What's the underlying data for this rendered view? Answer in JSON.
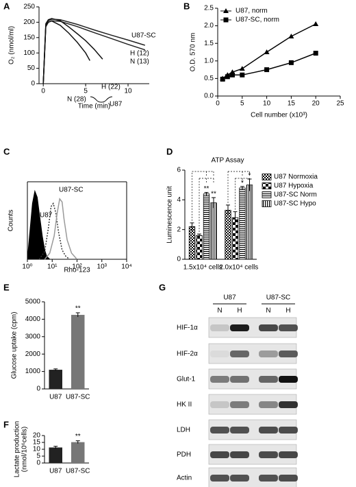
{
  "chart_data": [
    {
      "type": "line",
      "label": "A",
      "y_label": "O₂ (nmol/ml)",
      "x_label": "Time (min)",
      "xlim": [
        -0.5,
        12.5
      ],
      "xticks": [
        0,
        5,
        10
      ],
      "ylim": [
        0,
        250
      ],
      "yticks": [
        0,
        50,
        100,
        150,
        200,
        250
      ],
      "annotations": [
        "U87-SC",
        "U87"
      ],
      "series": [
        {
          "name": "H (12)",
          "color": "#222222",
          "x": [
            0,
            0.3,
            0.6,
            1,
            2,
            4,
            6,
            8,
            10,
            12
          ],
          "values": [
            0,
            190,
            205,
            210,
            208,
            193,
            175,
            158,
            142,
            125
          ]
        },
        {
          "name": "N (13)",
          "color": "#222222",
          "x": [
            0,
            0.3,
            0.6,
            1,
            2,
            4,
            6,
            8,
            10,
            12
          ],
          "values": [
            0,
            185,
            200,
            205,
            203,
            186,
            166,
            147,
            128,
            110
          ]
        },
        {
          "name": "H (22)",
          "color": "#111111",
          "x": [
            0,
            0.3,
            0.6,
            1,
            2,
            3,
            4,
            5,
            6,
            7
          ],
          "values": [
            0,
            195,
            208,
            212,
            205,
            185,
            163,
            140,
            112,
            80
          ]
        },
        {
          "name": "N (28)",
          "color": "#111111",
          "x": [
            0,
            0.3,
            0.6,
            1,
            2,
            3,
            4,
            5,
            5.5
          ],
          "values": [
            0,
            190,
            200,
            204,
            190,
            165,
            135,
            100,
            75
          ]
        }
      ]
    },
    {
      "type": "line",
      "label": "B",
      "x_label": "Cell number (x10³)",
      "y_label": "O.D. 570 nm",
      "x": [
        1,
        2,
        3,
        5,
        10,
        15,
        20
      ],
      "xlim": [
        0,
        25
      ],
      "xticks": [
        0,
        5,
        10,
        15,
        20,
        25
      ],
      "ylim": [
        0,
        2.5
      ],
      "yticks": [
        {
          "value": 0,
          "label": "0.0"
        },
        0.5,
        {
          "value": 1,
          "label": "1.0"
        },
        1.5,
        {
          "value": 2,
          "label": "2.0"
        },
        2.5
      ],
      "legend": "upper-left",
      "series": [
        {
          "name": "U87, norm",
          "color": "#000000",
          "marker": "triangle",
          "values": [
            0.5,
            0.6,
            0.68,
            0.78,
            1.25,
            1.7,
            2.05
          ]
        },
        {
          "name": "U87-SC, norm",
          "color": "#000000",
          "marker": "square",
          "values": [
            0.48,
            0.55,
            0.6,
            0.6,
            0.75,
            0.95,
            1.22
          ]
        }
      ]
    },
    {
      "type": "line",
      "label": "C",
      "y_label": "Counts",
      "x_label": "Rho-123",
      "box": true,
      "xscale": "log",
      "xlim": [
        1,
        10000
      ],
      "xticks": [
        {
          "value": 1,
          "label": "10⁰"
        },
        {
          "value": 10,
          "label": "10¹"
        },
        {
          "value": 100,
          "label": "10²"
        },
        {
          "value": 1000,
          "label": "10³"
        },
        {
          "value": 10000,
          "label": "10⁴"
        }
      ],
      "ylim": [
        0,
        100
      ],
      "series": [
        {
          "color": "#000000",
          "fill": true,
          "x": [
            1,
            1.3,
            1.6,
            2,
            2.5,
            3,
            4,
            5,
            6,
            8
          ],
          "values": [
            0,
            40,
            72,
            88,
            80,
            60,
            30,
            12,
            4,
            0
          ]
        },
        {
          "name": "U87",
          "color": "#333333",
          "dash": true,
          "x": [
            3,
            5,
            7,
            9,
            11,
            14,
            18,
            25,
            35,
            50
          ],
          "values": [
            0,
            10,
            40,
            68,
            72,
            60,
            35,
            12,
            4,
            0
          ]
        },
        {
          "name": "U87-SC",
          "color": "#999999",
          "x": [
            5,
            8,
            12,
            16,
            20,
            25,
            30,
            40,
            60,
            100
          ],
          "values": [
            0,
            8,
            30,
            60,
            78,
            74,
            52,
            25,
            8,
            0
          ]
        }
      ]
    },
    {
      "type": "bar",
      "label": "D",
      "title": "ATP Assay",
      "y_label": "Luminescence unit",
      "categories": [
        "1.5x10⁴ cells",
        "2.0x10⁴ cells"
      ],
      "ylim": [
        0,
        6
      ],
      "yticks": [
        0,
        2,
        4,
        6
      ],
      "legend": "right",
      "series": [
        {
          "name": "U87 Normoxia",
          "pattern": "crosshatch",
          "values": [
            2.2,
            3.3
          ],
          "errors": [
            0.25,
            0.35
          ]
        },
        {
          "name": "U87 Hypoxia",
          "pattern": "checker",
          "values": [
            1.6,
            2.8
          ],
          "errors": [
            0.1,
            0.4
          ]
        },
        {
          "name": "U87-SC Norm",
          "pattern": "hlines",
          "values": [
            4.4,
            4.8
          ],
          "errors": [
            0.1,
            0.1
          ],
          "significance": [
            "**",
            "*"
          ]
        },
        {
          "name": "U87-SC Hypo",
          "pattern": "vlines",
          "values": [
            3.8,
            5.0
          ],
          "errors": [
            0.35,
            0.4
          ],
          "significance": [
            "**",
            "*"
          ]
        }
      ]
    },
    {
      "type": "bar",
      "label": "E",
      "y_label": "Glucose uptake (cpm)",
      "categories": [
        "U87",
        "U87-SC"
      ],
      "values": [
        1100,
        4250
      ],
      "errors": [
        50,
        120
      ],
      "colors": [
        "#222222",
        "#777777"
      ],
      "significance": [
        null,
        "**"
      ],
      "ylim": [
        0,
        5000
      ],
      "yticks": [
        0,
        1000,
        2000,
        3000,
        4000,
        5000
      ]
    },
    {
      "type": "bar",
      "label": "F",
      "y_label": [
        "Lactate production",
        "(nmol/10⁶cells)"
      ],
      "categories": [
        "U87",
        "U87-SC"
      ],
      "values": [
        11.3,
        15.2
      ],
      "errors": [
        0.9,
        1.0
      ],
      "colors": [
        "#222222",
        "#777777"
      ],
      "significance": [
        null,
        "**"
      ],
      "ylim": [
        0,
        20
      ],
      "yticks": [
        0,
        5,
        10,
        15,
        20
      ]
    }
  ],
  "blot": {
    "label": "G",
    "groups": [
      "U87",
      "U87-SC"
    ],
    "lanes": [
      "N",
      "H",
      "N",
      "H"
    ],
    "rows": [
      "HIF-1α",
      "HIF-2α",
      "Glut-1",
      "HK II",
      "LDH",
      "PDH",
      "Actin"
    ]
  }
}
